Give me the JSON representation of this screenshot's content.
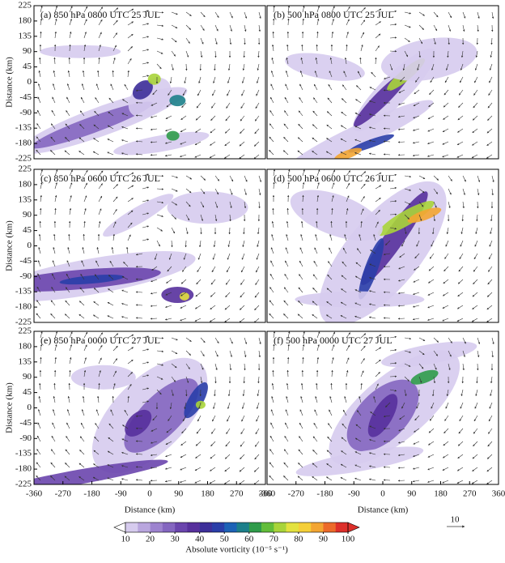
{
  "chart_data": [
    {
      "type": "contour",
      "title": "(a) 850 hPa 0800 UTC 25 JUL",
      "ylabel": "Distance (km)",
      "xlim": [
        -360,
        360
      ],
      "ylim": [
        -225,
        225
      ],
      "yticks": [
        225,
        180,
        135,
        90,
        45,
        0,
        -45,
        -90,
        -135,
        -180,
        -225
      ]
    },
    {
      "type": "contour",
      "title": "(b) 500 hPa 0800 UTC 25 JUL",
      "xlim": [
        -360,
        360
      ],
      "ylim": [
        -225,
        225
      ]
    },
    {
      "type": "contour",
      "title": "(c) 850 hPa 0600 UTC 26 JUL",
      "ylabel": "Distance (km)",
      "xlim": [
        -360,
        360
      ],
      "ylim": [
        -225,
        225
      ],
      "yticks": [
        225,
        180,
        135,
        90,
        45,
        0,
        -45,
        -90,
        -135,
        -180,
        -225
      ]
    },
    {
      "type": "contour",
      "title": "(d) 500 hPa 0600 UTC 26 JUL",
      "xlim": [
        -360,
        360
      ],
      "ylim": [
        -225,
        225
      ]
    },
    {
      "type": "contour",
      "title": "(e) 850 hPa 0000 UTC 27 JUL",
      "ylabel": "Distance (km)",
      "xlabel": "Distance (km)",
      "xlim": [
        -360,
        360
      ],
      "ylim": [
        -225,
        225
      ],
      "yticks": [
        225,
        180,
        135,
        90,
        45,
        0,
        -45,
        -90,
        -135,
        -180,
        -225
      ],
      "xticks": [
        -360,
        -270,
        -180,
        -90,
        0,
        90,
        180,
        270,
        360
      ]
    },
    {
      "type": "contour",
      "title": "(f) 500 hPa 0000 UTC 27 JUL",
      "xlabel": "Distance (km)",
      "xlim": [
        -360,
        360
      ],
      "ylim": [
        -225,
        225
      ],
      "xticks": [
        -360,
        -270,
        -180,
        -90,
        0,
        90,
        180,
        270,
        360
      ]
    }
  ],
  "colorbar": {
    "label": "Absolute vorticity (10⁻⁵ s⁻¹)",
    "lim": [
      10,
      100
    ],
    "ticks": [
      10,
      20,
      30,
      40,
      50,
      60,
      70,
      80,
      90,
      100
    ],
    "colors": [
      "#d6cbee",
      "#b9a6de",
      "#9d83cf",
      "#8466c0",
      "#6a45ad",
      "#57309c",
      "#3d2f99",
      "#2a3ea8",
      "#1d62b6",
      "#1c7f8a",
      "#2f9b4a",
      "#62bd3a",
      "#a8d43a",
      "#e3e23f",
      "#f5cf38",
      "#f3a532",
      "#ec6a2a",
      "#dd2f2a"
    ]
  },
  "reference_vector": {
    "label": "10"
  }
}
